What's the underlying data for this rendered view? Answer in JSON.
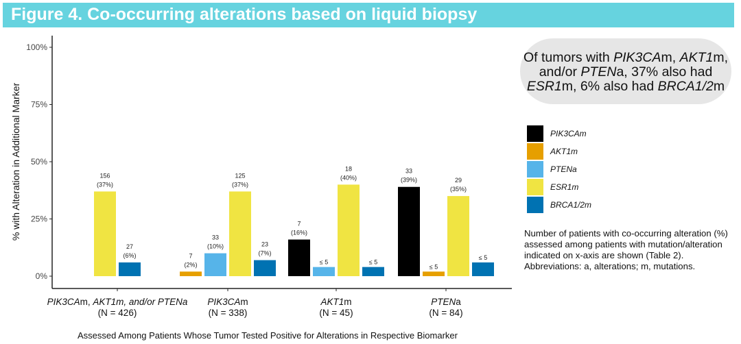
{
  "title": "Figure 4. Co-occurring alterations based on liquid biopsy",
  "callout": {
    "parts": [
      {
        "text": "Of tumors with ",
        "italic": false
      },
      {
        "text": "PIK3CA",
        "italic": true
      },
      {
        "text": "m, ",
        "italic": false
      },
      {
        "text": "AKT1",
        "italic": true
      },
      {
        "text": "m, and/or ",
        "italic": false
      },
      {
        "text": "PTEN",
        "italic": true
      },
      {
        "text": "a, 37% also had ",
        "italic": false
      },
      {
        "text": "ESR1",
        "italic": true
      },
      {
        "text": "m, 6% also had ",
        "italic": false
      },
      {
        "text": "BRCA1/2",
        "italic": true
      },
      {
        "text": "m",
        "italic": false
      }
    ]
  },
  "note": "Number of patients with co-occurring alteration (%) assessed among patients with mutation/alteration indicated on x-axis are shown (Table 2). Abbreviations: a, alterations; m, mutations.",
  "chart_data": {
    "type": "bar",
    "title": "Figure 4. Co-occurring alterations based on liquid biopsy",
    "xlabel": "Assessed Among Patients Whose Tumor Tested Positive for Alterations in Respective Biomarker",
    "ylabel": "% with Alteration in Additional Marker",
    "ylim": [
      0,
      100
    ],
    "yticks": [
      "0%",
      "25%",
      "50%",
      "75%",
      "100%"
    ],
    "ytick_values": [
      0,
      25,
      50,
      75,
      100
    ],
    "grid": false,
    "legend_position": "right",
    "categories": [
      {
        "label": "PIK3CAm, AKT1m, and/or PTENa",
        "n_label": "(N = 426)"
      },
      {
        "label": "PIK3CAm",
        "n_label": "(N = 338)"
      },
      {
        "label": "AKT1m",
        "n_label": "(N = 45)"
      },
      {
        "label": "PTENa",
        "n_label": "(N = 84)"
      }
    ],
    "series": [
      {
        "name": "PIK3CAm",
        "color": "#000000",
        "values": [
          null,
          null,
          16,
          39
        ],
        "counts": [
          null,
          null,
          "7",
          "33"
        ],
        "pct_labels": [
          null,
          null,
          "(16%)",
          "(39%)"
        ]
      },
      {
        "name": "AKT1m",
        "color": "#e69f00",
        "values": [
          null,
          2,
          null,
          2
        ],
        "counts": [
          null,
          "7",
          null,
          "≤ 5"
        ],
        "pct_labels": [
          null,
          "(2%)",
          null,
          null
        ]
      },
      {
        "name": "PTENa",
        "color": "#56b4e9",
        "values": [
          null,
          10,
          4,
          null
        ],
        "counts": [
          null,
          "33",
          "≤ 5",
          null
        ],
        "pct_labels": [
          null,
          "(10%)",
          null,
          null
        ]
      },
      {
        "name": "ESR1m",
        "color": "#f0e442",
        "values": [
          37,
          37,
          40,
          35
        ],
        "counts": [
          "156",
          "125",
          "18",
          "29"
        ],
        "pct_labels": [
          "(37%)",
          "(37%)",
          "(40%)",
          "(35%)"
        ]
      },
      {
        "name": "BRCA1/2m",
        "color": "#0072b2",
        "values": [
          6,
          7,
          4,
          6
        ],
        "counts": [
          "27",
          "23",
          "≤ 5",
          "≤ 5"
        ],
        "pct_labels": [
          "(6%)",
          "(7%)",
          null,
          null
        ]
      }
    ]
  }
}
